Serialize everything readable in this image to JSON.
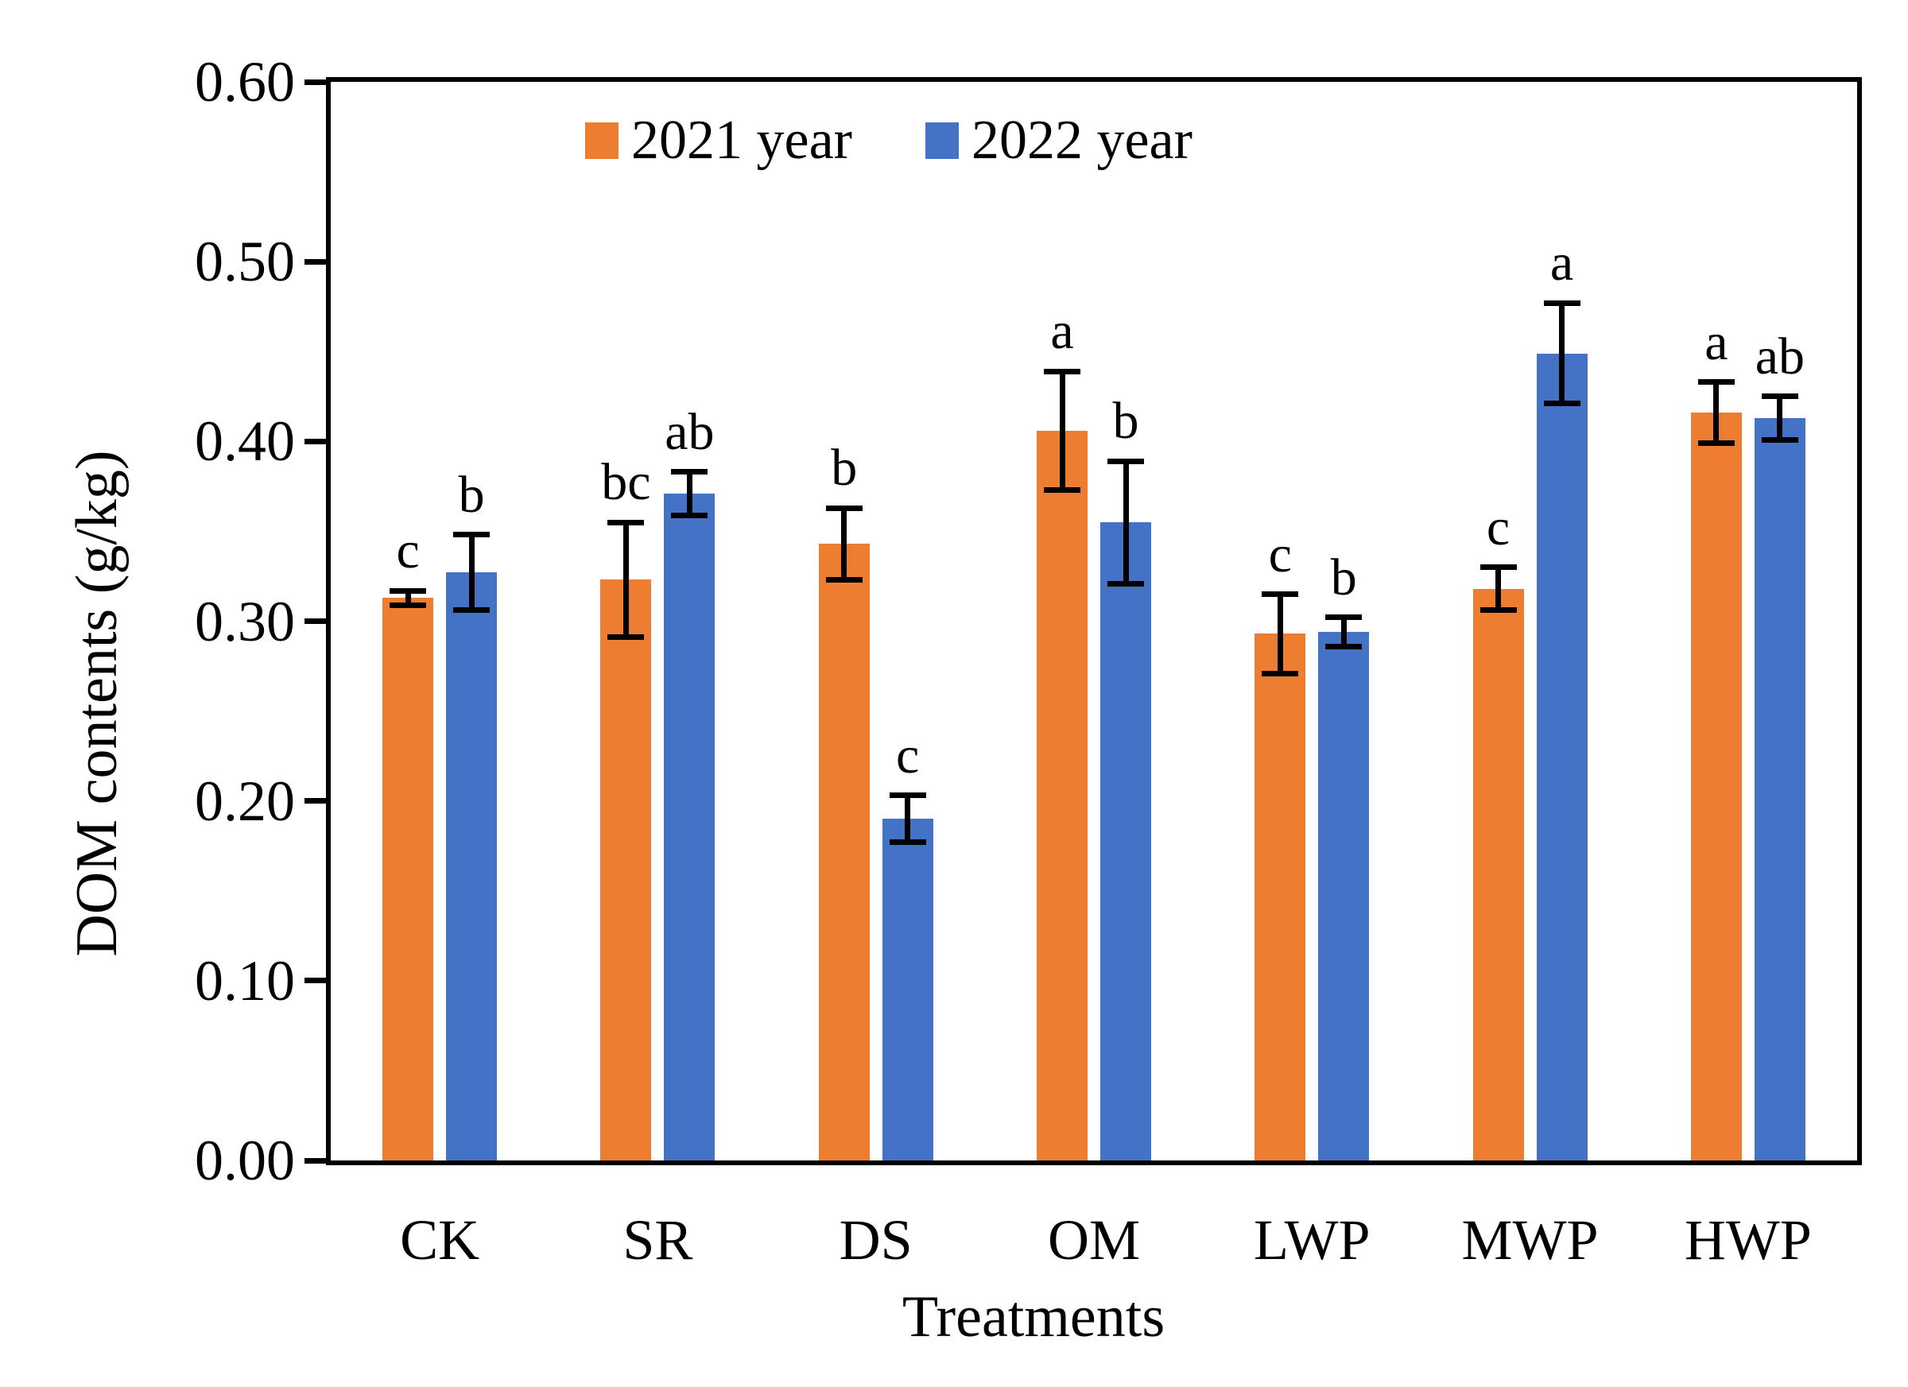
{
  "figure": {
    "background_color": "#ffffff",
    "axis_color": "#000000"
  },
  "chart_data": {
    "type": "bar",
    "title": "",
    "xlabel": "Treatments",
    "ylabel": "DOM contents (g/kg)",
    "ylim": [
      0.0,
      0.6
    ],
    "ytick_step": 0.1,
    "ytick_labels": [
      "0.00",
      "0.10",
      "0.20",
      "0.30",
      "0.40",
      "0.50",
      "0.60"
    ],
    "grid": false,
    "legend_position": "top-center-inside",
    "error_bars": true,
    "categories": [
      "CK",
      "SR",
      "DS",
      "OM",
      "LWP",
      "MWP",
      "HWP"
    ],
    "series": [
      {
        "name": "2021 year",
        "color": "#ED7D31",
        "values": [
          0.313,
          0.323,
          0.343,
          0.406,
          0.293,
          0.318,
          0.416
        ],
        "errors": [
          0.004,
          0.032,
          0.02,
          0.033,
          0.022,
          0.012,
          0.017
        ],
        "sig_letters": [
          "c",
          "bc",
          "b",
          "a",
          "c",
          "c",
          "a"
        ]
      },
      {
        "name": "2022 year",
        "color": "#4472C4",
        "values": [
          0.327,
          0.371,
          0.19,
          0.355,
          0.294,
          0.449,
          0.413
        ],
        "errors": [
          0.021,
          0.012,
          0.013,
          0.034,
          0.008,
          0.028,
          0.012
        ],
        "sig_letters": [
          "b",
          "ab",
          "c",
          "b",
          "b",
          "a",
          "ab"
        ]
      }
    ]
  }
}
